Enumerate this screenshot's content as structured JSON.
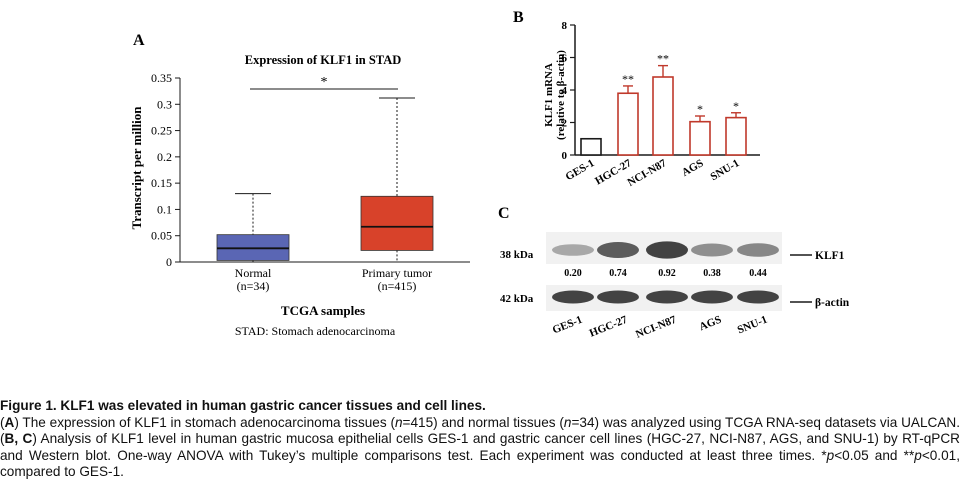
{
  "panel_a": {
    "letter": "A",
    "chart_data": {
      "type": "box",
      "title": "Expression of KLF1 in STAD",
      "ylabel": "Transcript per million",
      "xlabel": "TCGA samples",
      "subtitle": "STAD: Stomach adenocarcinoma",
      "ylim": [
        0,
        0.35
      ],
      "yticks": [
        "0",
        "0.05",
        "0.1",
        "0.15",
        "0.2",
        "0.25",
        "0.3",
        "0.35"
      ],
      "significance": "*",
      "groups": [
        {
          "name": "Normal",
          "n_label": "(n=34)",
          "min": 0,
          "q1": 0.003,
          "median": 0.026,
          "q3": 0.052,
          "max": 0.13,
          "color": "#5a66b4"
        },
        {
          "name": "Primary tumor",
          "n_label": "(n=415)",
          "min": 0,
          "q1": 0.022,
          "median": 0.067,
          "q3": 0.125,
          "max": 0.312,
          "color": "#d8422a"
        }
      ]
    }
  },
  "panel_b": {
    "letter": "B",
    "chart_data": {
      "type": "bar",
      "ylabel_line1": "KLF1 mRNA",
      "ylabel_line2": "(relative to β-actin)",
      "ylim": [
        0,
        8
      ],
      "yticks": [
        "0",
        "2",
        "4",
        "6",
        "8"
      ],
      "categories": [
        "GES-1",
        "HGC-27",
        "NCI-N87",
        "AGS",
        "SNU-1"
      ],
      "values": [
        1.0,
        3.8,
        4.8,
        2.05,
        2.3
      ],
      "errors": [
        0,
        0.45,
        0.7,
        0.35,
        0.3
      ],
      "significance": [
        "",
        "**",
        "**",
        "*",
        "*"
      ],
      "colors": [
        "#1a1a1a",
        "#c0392b",
        "#c0392b",
        "#c0392b",
        "#c0392b"
      ]
    }
  },
  "panel_c": {
    "letter": "C",
    "klf1_kda": "38 kDa",
    "actin_kda": "42 kDa",
    "klf1_label": "KLF1",
    "actin_label": "β-actin",
    "lanes": [
      "GES-1",
      "HGC-27",
      "NCI-N87",
      "AGS",
      "SNU-1"
    ],
    "densities": [
      "0.20",
      "0.74",
      "0.92",
      "0.38",
      "0.44"
    ],
    "density_values": [
      0.2,
      0.74,
      0.92,
      0.38,
      0.44
    ]
  },
  "caption": {
    "title": "Figure 1. KLF1 was elevated in human gastric cancer tissues and cell lines.",
    "p1_l": "(",
    "p1_a": "A",
    "p1_t1": ") The expression of KLF1 in stomach adenocarcinoma tissues (",
    "p1_n": "n",
    "p1_t2": "=415) and normal tissues (",
    "p1_n2": "n",
    "p1_t3": "=34) was analyzed using TCGA RNA-seq datasets via UALCAN. (",
    "p1_bc": "B, C",
    "p1_t4": ") Analysis of KLF1 level in human gastric mucosa epithelial cells GES-1 and gastric cancer cell lines (HGC-27, NCI-N87, AGS, and SNU-1) by RT-qPCR and Western blot. One-way ANOVA with Tukey’s multiple comparisons test. Each experiment was conducted at least three times. *",
    "p1_p": "p",
    "p1_t5": "<0.05 and **",
    "p1_p2": "p",
    "p1_t6": "<0.01, compared to GES-1."
  }
}
